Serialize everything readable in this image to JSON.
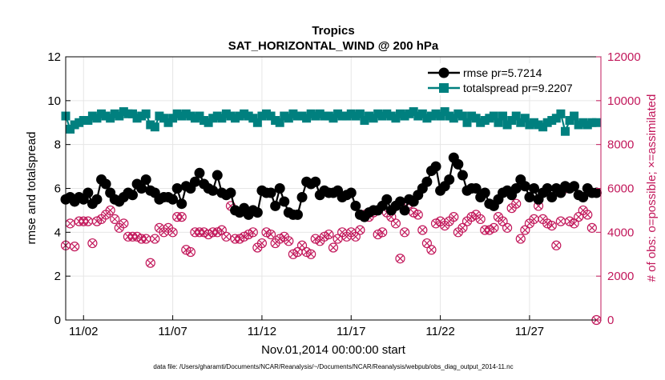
{
  "chart_data": {
    "type": "line",
    "title": "Tropics",
    "subtitle": "SAT_HORIZONTAL_WIND @ 200 hPa",
    "xlabel": "Nov.01,2014 00:00:00 start",
    "ylabel": "rmse and totalspread",
    "y2label": "# of obs: o=possible; ×=assimilated",
    "xlim": [
      0,
      30
    ],
    "ylim": [
      0,
      12
    ],
    "y2lim": [
      0,
      12000
    ],
    "xticks": [
      1,
      6,
      11,
      16,
      21,
      26
    ],
    "xtick_labels": [
      "11/02",
      "11/07",
      "11/12",
      "11/17",
      "11/22",
      "11/27"
    ],
    "yticks": [
      0,
      2,
      4,
      6,
      8,
      10,
      12
    ],
    "y2ticks": [
      0,
      2000,
      4000,
      6000,
      8000,
      10000,
      12000
    ],
    "grid": true,
    "legend": "top-right",
    "footer": "data file: /Users/gharamti/Documents/NCAR/Reanalysis/~/Documents/NCAR/Reanalysis/webpub/obs_diag_output_2014-11.nc",
    "colors": {
      "rmse": "#000000",
      "totalspread": "#00807f",
      "obs": "#c2185b"
    },
    "x": [
      0.0,
      0.25,
      0.5,
      0.75,
      1.0,
      1.25,
      1.5,
      1.75,
      2.0,
      2.25,
      2.5,
      2.75,
      3.0,
      3.25,
      3.5,
      3.75,
      4.0,
      4.25,
      4.5,
      4.75,
      5.0,
      5.25,
      5.5,
      5.75,
      6.0,
      6.25,
      6.5,
      6.75,
      7.0,
      7.25,
      7.5,
      7.75,
      8.0,
      8.25,
      8.5,
      8.75,
      9.0,
      9.25,
      9.5,
      9.75,
      10.0,
      10.25,
      10.5,
      10.75,
      11.0,
      11.25,
      11.5,
      11.75,
      12.0,
      12.25,
      12.5,
      12.75,
      13.0,
      13.25,
      13.5,
      13.75,
      14.0,
      14.25,
      14.5,
      14.75,
      15.0,
      15.25,
      15.5,
      15.75,
      16.0,
      16.25,
      16.5,
      16.75,
      17.0,
      17.25,
      17.5,
      17.75,
      18.0,
      18.25,
      18.5,
      18.75,
      19.0,
      19.25,
      19.5,
      19.75,
      20.0,
      20.25,
      20.5,
      20.75,
      21.0,
      21.25,
      21.5,
      21.75,
      22.0,
      22.25,
      22.5,
      22.75,
      23.0,
      23.25,
      23.5,
      23.75,
      24.0,
      24.25,
      24.5,
      24.75,
      25.0,
      25.25,
      25.5,
      25.75,
      26.0,
      26.25,
      26.5,
      26.75,
      27.0,
      27.25,
      27.5,
      27.75,
      28.0,
      28.25,
      28.5,
      28.75,
      29.0,
      29.25,
      29.5,
      29.75
    ],
    "series": [
      {
        "name": "rmse pr=5.7214",
        "axis": "left",
        "values": [
          5.5,
          5.6,
          5.4,
          5.6,
          5.5,
          5.8,
          5.3,
          5.5,
          6.4,
          6.2,
          5.8,
          5.5,
          5.4,
          5.6,
          5.8,
          5.7,
          6.2,
          6.0,
          6.4,
          5.9,
          5.8,
          5.5,
          5.6,
          5.6,
          5.5,
          6.0,
          5.3,
          6.1,
          6.0,
          6.3,
          6.7,
          6.2,
          6.0,
          5.9,
          6.6,
          5.8,
          5.7,
          5.8,
          5.0,
          4.9,
          5.1,
          4.8,
          5.0,
          4.9,
          5.9,
          5.8,
          5.8,
          5.2,
          6.0,
          5.4,
          4.9,
          4.8,
          4.8,
          5.6,
          6.3,
          6.2,
          6.3,
          5.7,
          5.9,
          5.8,
          5.8,
          5.9,
          5.6,
          5.7,
          5.8,
          5.2,
          4.8,
          4.7,
          4.9,
          5.0,
          5.0,
          5.2,
          5.5,
          5.0,
          5.2,
          5.4,
          5.0,
          5.5,
          5.4,
          5.7,
          6.0,
          6.3,
          6.8,
          7.0,
          5.9,
          6.1,
          6.4,
          7.4,
          7.1,
          6.6,
          5.9,
          6.0,
          6.0,
          5.6,
          5.8,
          5.3,
          5.2,
          5.5,
          5.8,
          5.9,
          5.7,
          6.0,
          6.4,
          6.1,
          5.6,
          6.0,
          5.5,
          5.8,
          6.0,
          5.6,
          6.0,
          5.8,
          6.1,
          6.0,
          6.1,
          5.7,
          5.6,
          6.0,
          5.8,
          5.8
        ]
      },
      {
        "name": "totalspread pr=9.2207",
        "axis": "left",
        "values": [
          9.3,
          8.7,
          8.9,
          9.0,
          9.1,
          9.1,
          9.3,
          9.2,
          9.4,
          9.3,
          9.2,
          9.4,
          9.3,
          9.5,
          9.4,
          9.4,
          9.2,
          9.3,
          9.4,
          8.9,
          8.8,
          9.3,
          9.2,
          9.0,
          9.2,
          9.4,
          9.3,
          9.4,
          9.3,
          9.2,
          9.3,
          9.1,
          9.0,
          9.2,
          9.3,
          9.2,
          9.4,
          9.3,
          9.2,
          9.3,
          9.4,
          9.3,
          9.2,
          9.0,
          9.3,
          9.4,
          9.3,
          9.1,
          9.0,
          9.3,
          9.2,
          9.4,
          9.3,
          9.3,
          9.2,
          9.4,
          9.3,
          9.4,
          9.3,
          9.3,
          9.2,
          9.4,
          9.3,
          9.3,
          9.4,
          9.3,
          9.4,
          9.1,
          9.3,
          9.2,
          9.4,
          9.3,
          9.4,
          9.3,
          9.2,
          9.4,
          9.3,
          9.4,
          9.5,
          9.3,
          9.4,
          9.2,
          9.3,
          9.4,
          9.3,
          9.5,
          9.3,
          9.2,
          9.4,
          9.3,
          9.0,
          9.3,
          9.2,
          9.0,
          9.1,
          9.2,
          9.3,
          9.0,
          9.3,
          8.9,
          9.1,
          9.3,
          9.0,
          9.2,
          8.9,
          9.0,
          8.9,
          8.8,
          9.0,
          9.1,
          9.2,
          9.4,
          8.6,
          9.1,
          9.3,
          8.9,
          9.0,
          8.9,
          9.0,
          9.0
        ]
      },
      {
        "name": "# obs assimilated",
        "axis": "right",
        "marker": "circle-x",
        "values": [
          3400,
          4400,
          3350,
          4500,
          4500,
          4500,
          3500,
          4500,
          4600,
          4800,
          5000,
          4600,
          4200,
          4400,
          3800,
          3800,
          3800,
          3700,
          3700,
          2600,
          3700,
          4200,
          4000,
          4200,
          4000,
          4700,
          4700,
          3200,
          3100,
          4000,
          4000,
          4000,
          3900,
          4000,
          4000,
          4100,
          3800,
          5200,
          3700,
          3700,
          3800,
          3900,
          4000,
          3300,
          3500,
          4000,
          3900,
          3500,
          3700,
          3800,
          3600,
          3000,
          3100,
          3400,
          3100,
          3000,
          3700,
          3600,
          3800,
          3900,
          3300,
          3700,
          4000,
          3800,
          4000,
          3800,
          4100,
          4800,
          4700,
          4900,
          3900,
          4000,
          4900,
          4700,
          4400,
          2800,
          4000,
          5300,
          4900,
          4800,
          4100,
          3500,
          3200,
          4400,
          4500,
          4300,
          4500,
          4700,
          4000,
          4200,
          4500,
          4700,
          4800,
          4600,
          4100,
          4100,
          4200,
          4700,
          4500,
          4200,
          5100,
          5300,
          3700,
          4100,
          4400,
          4600,
          5200,
          4600,
          4400,
          4300,
          3400,
          4500,
          6000,
          4500,
          4400,
          4700,
          5000,
          4800,
          4200,
          0
        ]
      }
    ]
  }
}
